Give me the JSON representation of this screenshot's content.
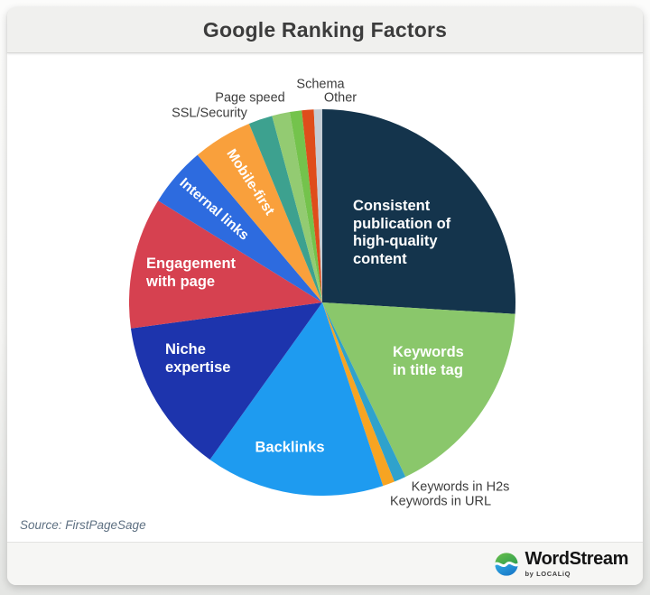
{
  "header": {
    "title": "Google Ranking Factors"
  },
  "source": {
    "text": "Source: FirstPageSage"
  },
  "brand": {
    "name": "WordStream",
    "byline": "by LOCALiQ"
  },
  "chart_data": {
    "type": "pie",
    "title": "Google Ranking Factors",
    "source": "FirstPageSage",
    "start_angle": "12-o-clock",
    "direction": "clockwise",
    "slices": [
      {
        "label": "Consistent publication of high-quality content",
        "value": 26,
        "color": "#14344C"
      },
      {
        "label": "Keywords in title tag",
        "value": 17,
        "color": "#8AC76B"
      },
      {
        "label": "Keywords in H2s",
        "value": 1,
        "color": "#2FA2CC"
      },
      {
        "label": "Keywords in URL",
        "value": 1,
        "color": "#F7A422"
      },
      {
        "label": "Backlinks",
        "value": 15,
        "color": "#1E9BF0"
      },
      {
        "label": "Niche expertise",
        "value": 13,
        "color": "#1D34AD"
      },
      {
        "label": "Engagement with page",
        "value": 11,
        "color": "#D64150"
      },
      {
        "label": "Internal links",
        "value": 5,
        "color": "#2D6BDF"
      },
      {
        "label": "Mobile-first",
        "value": 5,
        "color": "#F9A03C"
      },
      {
        "label": "SSL/Security",
        "value": 2,
        "color": "#3DA18F"
      },
      {
        "label": "Page speed",
        "value": 1.5,
        "color": "#93CB72"
      },
      {
        "label": "",
        "value": 1,
        "color": "#74C34C"
      },
      {
        "label": "Schema",
        "value": 1,
        "color": "#DF4D1B"
      },
      {
        "label": "Other",
        "value": 0.7,
        "color": "#C4CCD4"
      }
    ]
  },
  "labels": {
    "content": [
      "Consistent",
      "publication of",
      "high-quality",
      "content"
    ],
    "title_tag": [
      "Keywords",
      "in title tag"
    ],
    "backlinks": "Backlinks",
    "niche": [
      "Niche",
      "expertise"
    ],
    "engagement": [
      "Engagement",
      "with page"
    ],
    "internal": "Internal links",
    "mobile": "Mobile-first",
    "ssl": "SSL/Security",
    "pagespeed": "Page speed",
    "schema": "Schema",
    "other": "Other",
    "h2s": "Keywords in H2s",
    "url": "Keywords in URL"
  }
}
